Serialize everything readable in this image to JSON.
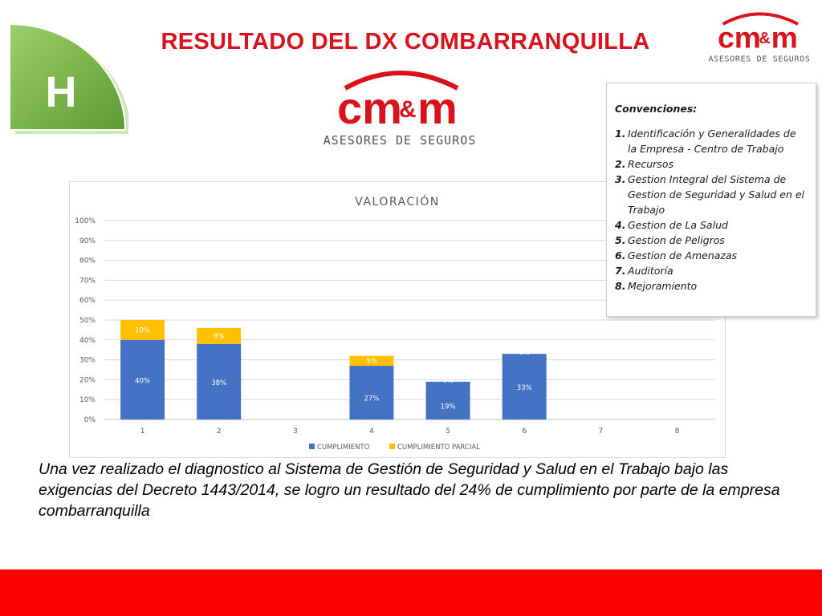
{
  "header": {
    "badge_letter": "H",
    "title": "RESULTADO DEL DX COMBARRANQUILLA"
  },
  "logo": {
    "mark_left": "cm",
    "mark_amp": "&",
    "mark_right": "m",
    "tagline": "ASESORES DE SEGUROS"
  },
  "colors": {
    "brand_red": "#d9121b",
    "footer_red": "#ff0000",
    "badge_green": "#7ab648",
    "cumplimiento": "#4472c4",
    "cumplimiento_parcial": "#ffc000"
  },
  "chart_data": {
    "type": "bar",
    "stacked": true,
    "title": "VALORACIÓN",
    "categories": [
      "1",
      "2",
      "3",
      "4",
      "5",
      "6",
      "7",
      "8"
    ],
    "series": [
      {
        "name": "CUMPLIMIENTO",
        "color": "#4472c4",
        "values": [
          40,
          38,
          null,
          27,
          19,
          33,
          null,
          null
        ],
        "labels": [
          "40%",
          "38%",
          "",
          "27%",
          "19%",
          "33%",
          "",
          ""
        ]
      },
      {
        "name": "CUMPLIMIENTO PARCIAL",
        "color": "#ffc000",
        "values": [
          10,
          8,
          null,
          5,
          0,
          0,
          null,
          null
        ],
        "labels": [
          "10%",
          "8%",
          "",
          "5%",
          "0%",
          "0%",
          "",
          ""
        ]
      }
    ],
    "y_ticks": [
      "0%",
      "10%",
      "20%",
      "30%",
      "40%",
      "50%",
      "60%",
      "70%",
      "80%",
      "90%",
      "100%"
    ],
    "ylim": [
      0,
      100
    ],
    "grid": true,
    "legend_position": "bottom"
  },
  "conventions": {
    "title": "Convenciones:",
    "items": [
      {
        "num": "1.",
        "text": "Identificación y Generalidades de la Empresa - Centro de Trabajo"
      },
      {
        "num": "2.",
        "text": "Recursos"
      },
      {
        "num": "3.",
        "text": "Gestion Integral del Sistema de Gestion de Seguridad y Salud en el Trabajo"
      },
      {
        "num": "4.",
        "text": "Gestion de La Salud"
      },
      {
        "num": "5.",
        "text": "Gestion de Peligros"
      },
      {
        "num": "6.",
        "text": "Gestion de Amenazas"
      },
      {
        "num": "7.",
        "text": "Auditoría"
      },
      {
        "num": "8.",
        "text": "Mejoramiento"
      }
    ]
  },
  "summary": "Una vez realizado el diagnostico al Sistema de Gestión de Seguridad y Salud en el Trabajo bajo las exigencias del Decreto 1443/2014, se logro  un resultado del 24% de cumplimiento por parte de la empresa combarranquilla"
}
